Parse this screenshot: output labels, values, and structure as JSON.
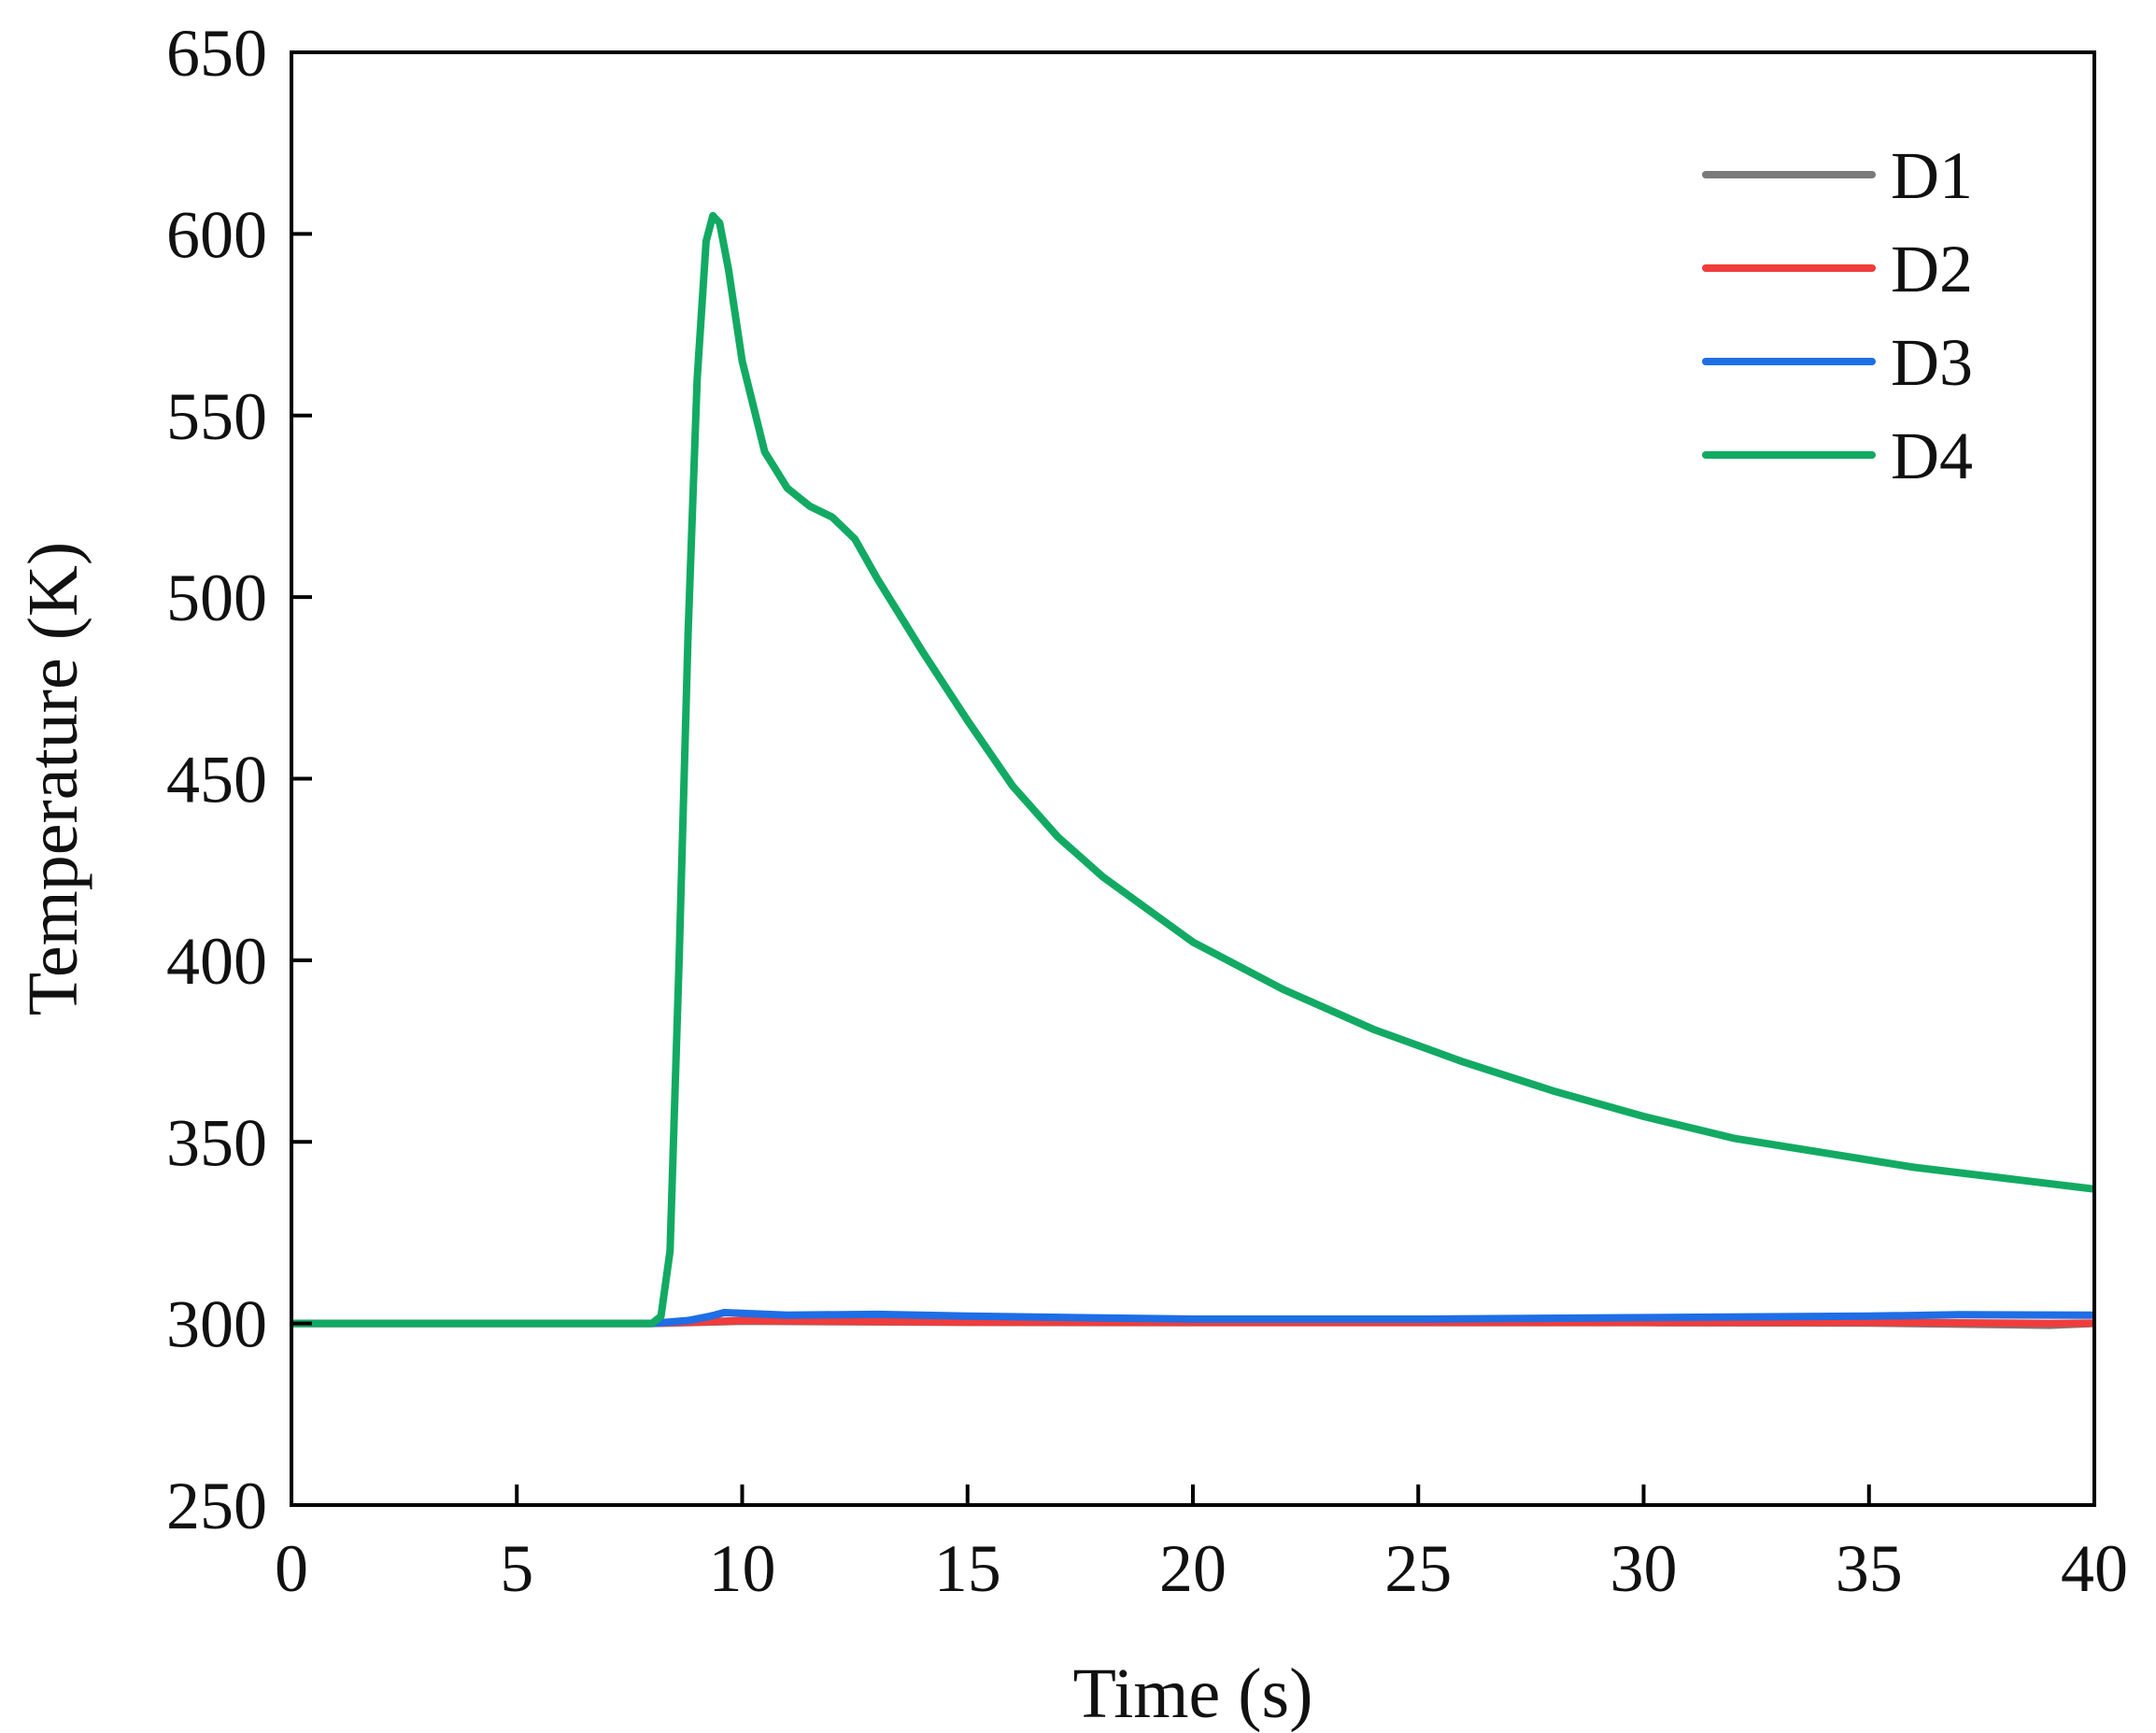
{
  "chart_data": {
    "type": "line",
    "title": "",
    "xlabel": "Time (s)",
    "ylabel": "Temperature (K)",
    "xlim": [
      0,
      40
    ],
    "ylim": [
      250,
      650
    ],
    "xticks": [
      0,
      5,
      10,
      15,
      20,
      25,
      30,
      35,
      40
    ],
    "yticks": [
      250,
      300,
      350,
      400,
      450,
      500,
      550,
      600,
      650
    ],
    "xtick_labels": [
      "0",
      "5",
      "10",
      "15",
      "20",
      "25",
      "30",
      "35",
      "40"
    ],
    "ytick_labels": [
      "250",
      "300",
      "350",
      "400",
      "450",
      "500",
      "550",
      "600",
      "650"
    ],
    "grid": false,
    "legend": "top-right",
    "series": [
      {
        "name": "D1",
        "color": "#7a7a7a",
        "x": [
          0,
          8.0,
          9.0,
          10,
          12,
          15,
          20,
          25,
          30,
          35,
          39,
          40
        ],
        "y": [
          300,
          300,
          300.3,
          300.6,
          300.5,
          300.3,
          300.2,
          300.2,
          300.2,
          300.1,
          299.5,
          300
        ]
      },
      {
        "name": "D2",
        "color": "#f03c3c",
        "x": [
          0,
          8.0,
          9.0,
          10,
          12,
          15,
          20,
          25,
          30,
          35,
          39,
          40
        ],
        "y": [
          300,
          300,
          300.4,
          300.8,
          300.6,
          300.4,
          300.3,
          300.3,
          300.3,
          300.3,
          300.0,
          300.1
        ]
      },
      {
        "name": "D3",
        "color": "#1e6ee6",
        "x": [
          0,
          8.0,
          8.8,
          9.3,
          9.6,
          10,
          11,
          13,
          15,
          18,
          20,
          25,
          30,
          35,
          37,
          40
        ],
        "y": [
          300,
          300,
          300.8,
          302,
          303,
          302.8,
          302.3,
          302.5,
          302,
          301.5,
          301.2,
          301.2,
          301.6,
          302,
          302.4,
          302.3
        ]
      },
      {
        "name": "D4",
        "color": "#12aa63",
        "x": [
          0,
          8.0,
          8.2,
          8.4,
          8.6,
          8.8,
          9.0,
          9.2,
          9.35,
          9.5,
          9.7,
          10.0,
          10.5,
          11.0,
          11.5,
          12.0,
          12.5,
          13.0,
          14.0,
          15.0,
          16.0,
          17.0,
          18.0,
          19.0,
          20.0,
          22.0,
          24.0,
          26.0,
          28.0,
          30.0,
          32.0,
          34.0,
          36.0,
          38.0,
          40.0
        ],
        "y": [
          300,
          300,
          302,
          320,
          400,
          490,
          560,
          598,
          605,
          603,
          590,
          565,
          540,
          530,
          525,
          522,
          516,
          505,
          485,
          466,
          448,
          434,
          423,
          414,
          405,
          392,
          381,
          372,
          364,
          357,
          351,
          347,
          343,
          340,
          337
        ]
      }
    ]
  }
}
